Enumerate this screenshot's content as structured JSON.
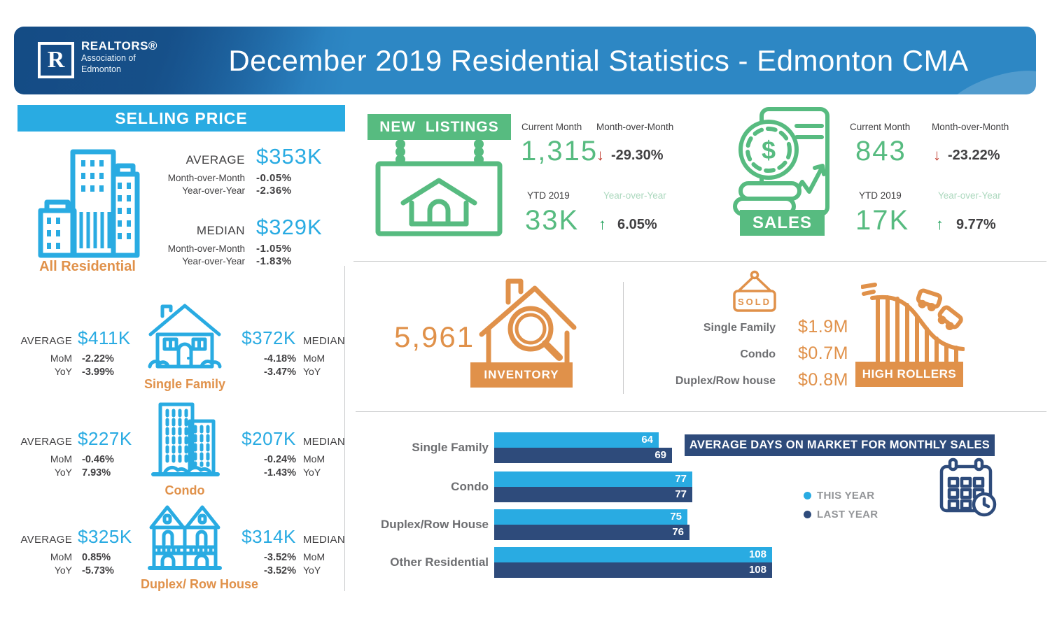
{
  "header": {
    "brand": "REALTORS®",
    "brand_sub1": "Association of",
    "brand_sub2": "Edmonton",
    "logo_letter": "R",
    "title": "December 2019 Residential Statistics - Edmonton CMA"
  },
  "selling_price": {
    "banner": "SELLING PRICE",
    "labels": {
      "average": "AVERAGE",
      "median": "MEDIAN",
      "mom_long": "Month-over-Month",
      "yoy_long": "Year-over-Year",
      "mom": "MoM",
      "yoy": "YoY"
    },
    "all_residential": {
      "label": "All Residential",
      "average": "$353K",
      "avg_mom": "-0.05%",
      "avg_yoy": "-2.36%",
      "median": "$329K",
      "med_mom": "-1.05%",
      "med_yoy": "-1.83%"
    },
    "properties": [
      {
        "label": "Single Family",
        "average": "$411K",
        "avg_mom": "-2.22%",
        "avg_yoy": "-3.99%",
        "median": "$372K",
        "med_mom": "-4.18%",
        "med_yoy": "-3.47%"
      },
      {
        "label": "Condo",
        "average": "$227K",
        "avg_mom": "-0.46%",
        "avg_yoy": "7.93%",
        "median": "$207K",
        "med_mom": "-0.24%",
        "med_yoy": "-1.43%"
      },
      {
        "label": "Duplex/ Row House",
        "average": "$325K",
        "avg_mom": "0.85%",
        "avg_yoy": "-5.73%",
        "median": "$314K",
        "med_mom": "-3.52%",
        "med_yoy": "-3.52%"
      }
    ]
  },
  "new_listings": {
    "banner": "NEW  LISTINGS",
    "current_month_label": "Current Month",
    "current_month": "1,315",
    "mom_label": "Month-over-Month",
    "mom": "-29.30%",
    "ytd_label": "YTD 2019",
    "ytd": "33K",
    "yoy_label": "Year-over-Year",
    "yoy": "6.05%"
  },
  "sales": {
    "banner": "SALES",
    "current_month_label": "Current Month",
    "current_month": "843",
    "mom_label": "Month-over-Month",
    "mom": "-23.22%",
    "ytd_label": "YTD 2019",
    "ytd": "17K",
    "yoy_label": "Year-over-Year",
    "yoy": "9.77%"
  },
  "inventory": {
    "count": "5,961",
    "banner": "INVENTORY"
  },
  "high_rollers": {
    "sign": "SOLD",
    "banner": "HIGH ROLLERS",
    "rows": [
      {
        "label": "Single Family",
        "value": "$1.9M"
      },
      {
        "label": "Condo",
        "value": "$0.7M"
      },
      {
        "label": "Duplex/Row house",
        "value": "$0.8M"
      }
    ]
  },
  "icons": {
    "dollar": "$"
  },
  "arrows": {
    "down": "↓",
    "up": "↑"
  },
  "chart_data": {
    "type": "bar",
    "orientation": "horizontal",
    "title": "AVERAGE DAYS ON MARKET FOR MONTHLY SALES",
    "categories": [
      "Single Family",
      "Condo",
      "Duplex/Row House",
      "Other Residential"
    ],
    "series": [
      {
        "name": "THIS YEAR",
        "values": [
          64,
          77,
          75,
          108
        ],
        "color": "#29ABE2"
      },
      {
        "name": "LAST YEAR",
        "values": [
          69,
          77,
          76,
          108
        ],
        "color": "#2E4B7B"
      }
    ],
    "xlim": [
      0,
      110
    ],
    "value_labels": true,
    "grid": false,
    "legend_position": "center-right"
  },
  "colors": {
    "light_blue": "#29ABE2",
    "header_blue": "#2D87C4",
    "header_dark_blue": "#1A5B9E",
    "navy": "#2E4B7B",
    "green": "#57BB80",
    "green_faded": "#ACD8BE",
    "orange": "#E0914A",
    "red": "#C0392B",
    "text_dark": "#414042",
    "text_gray": "#6D6E71",
    "legend_gray": "#939598"
  }
}
